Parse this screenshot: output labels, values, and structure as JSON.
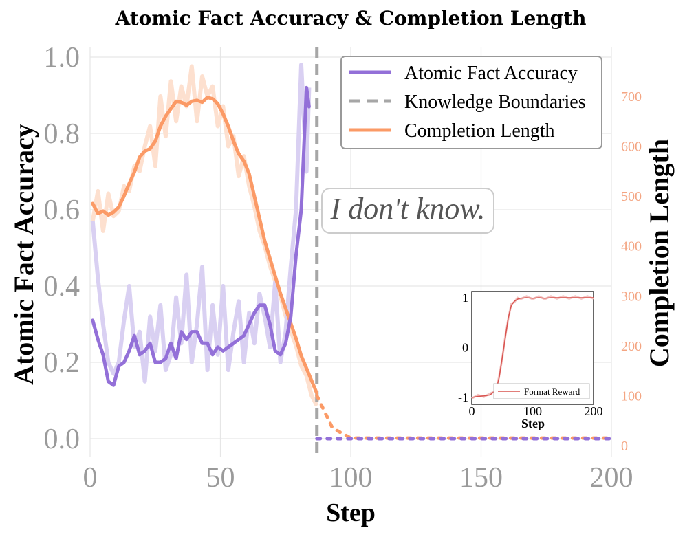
{
  "chart_data": {
    "type": "line",
    "title": "Atomic Fact Accuracy & Completion Length",
    "xlabel": "Step",
    "ylabel_left": "Atomic Fact Accuracy",
    "ylabel_right": "Completion Length",
    "xlim": [
      0,
      200
    ],
    "ylim_left": [
      0,
      1.0
    ],
    "ylim_right": [
      0,
      800
    ],
    "x_ticks": [
      "0",
      "50",
      "100",
      "150",
      "200"
    ],
    "y_left_ticks": [
      "0.0",
      "0.2",
      "0.4",
      "0.6",
      "0.8",
      "1.0"
    ],
    "y_right_ticks": [
      "0",
      "100",
      "200",
      "300",
      "400",
      "500",
      "600",
      "700"
    ],
    "grid": true,
    "legend_position": "top-right",
    "legend": [
      "Atomic Fact Accuracy",
      "Knowledge Boundaries",
      "Completion Length"
    ],
    "colors": {
      "accuracy": "#9370d8",
      "accuracy_raw": "#d9d0f2",
      "length": "#fb9a66",
      "length_raw": "#fde0cf",
      "boundary": "#a6a6a6",
      "inset": "#d9534f",
      "inset_raw": "#f2c6c4",
      "grid": "#e6e6e6",
      "right_axis": "#f4a582"
    },
    "knowledge_boundary_step": 87,
    "annotation": "I don't know.",
    "series": [
      {
        "name": "Atomic Fact Accuracy",
        "axis": "left",
        "x": [
          1,
          3,
          5,
          7,
          9,
          11,
          13,
          15,
          17,
          19,
          21,
          23,
          25,
          27,
          29,
          31,
          33,
          35,
          37,
          39,
          41,
          43,
          45,
          47,
          49,
          51,
          53,
          55,
          57,
          59,
          61,
          63,
          65,
          67,
          69,
          71,
          73,
          75,
          77,
          79,
          81,
          83,
          84
        ],
        "y": [
          0.31,
          0.26,
          0.22,
          0.15,
          0.14,
          0.19,
          0.2,
          0.23,
          0.27,
          0.22,
          0.23,
          0.25,
          0.2,
          0.2,
          0.21,
          0.25,
          0.21,
          0.28,
          0.26,
          0.28,
          0.28,
          0.25,
          0.25,
          0.22,
          0.24,
          0.23,
          0.24,
          0.25,
          0.26,
          0.27,
          0.3,
          0.33,
          0.35,
          0.35,
          0.3,
          0.23,
          0.22,
          0.25,
          0.32,
          0.48,
          0.6,
          0.92,
          0.87
        ],
        "raw": [
          0.57,
          0.42,
          0.3,
          0.2,
          0.17,
          0.2,
          0.31,
          0.4,
          0.24,
          0.28,
          0.15,
          0.32,
          0.23,
          0.35,
          0.18,
          0.22,
          0.37,
          0.25,
          0.43,
          0.2,
          0.3,
          0.45,
          0.18,
          0.35,
          0.22,
          0.4,
          0.18,
          0.28,
          0.36,
          0.2,
          0.33,
          0.25,
          0.38,
          0.32,
          0.24,
          0.41,
          0.2,
          0.28,
          0.45,
          0.6,
          0.98,
          0.7,
          0.92
        ]
      },
      {
        "name": "Completion Length",
        "axis": "right",
        "x": [
          1,
          3,
          5,
          7,
          9,
          11,
          13,
          15,
          17,
          19,
          21,
          23,
          25,
          27,
          29,
          31,
          33,
          35,
          37,
          39,
          41,
          43,
          45,
          47,
          49,
          51,
          53,
          55,
          57,
          59,
          61,
          63,
          65,
          67,
          69,
          71,
          73,
          75,
          77,
          79,
          81,
          83,
          85,
          87
        ],
        "y": [
          485,
          465,
          470,
          462,
          468,
          478,
          500,
          525,
          548,
          578,
          590,
          595,
          610,
          640,
          660,
          675,
          690,
          688,
          682,
          690,
          692,
          688,
          698,
          695,
          685,
          665,
          640,
          610,
          585,
          570,
          545,
          500,
          455,
          410,
          375,
          340,
          305,
          275,
          245,
          215,
          180,
          155,
          130,
          105
        ],
        "raw": [
          450,
          510,
          430,
          505,
          460,
          470,
          520,
          510,
          560,
          550,
          600,
          640,
          560,
          700,
          620,
          730,
          650,
          720,
          680,
          760,
          650,
          740,
          700,
          720,
          640,
          680,
          600,
          620,
          540,
          580,
          520,
          480,
          430,
          400,
          360,
          330,
          300,
          260,
          230,
          200,
          160,
          140,
          100,
          80
        ]
      },
      {
        "name": "Format Reward",
        "inset": true,
        "x": [
          0,
          10,
          20,
          30,
          40,
          45,
          50,
          55,
          60,
          65,
          70,
          75,
          80,
          90,
          100,
          110,
          120,
          130,
          140,
          150,
          160,
          170,
          180,
          190,
          200
        ],
        "y": [
          -1,
          -0.98,
          -0.97,
          -0.95,
          -0.85,
          -0.6,
          -0.2,
          0.2,
          0.6,
          0.85,
          0.93,
          0.97,
          0.99,
          1,
          0.99,
          1,
          0.99,
          1,
          1,
          1,
          1,
          1,
          1,
          1,
          1
        ]
      }
    ],
    "inset": {
      "xlabel": "Step",
      "xlim": [
        0,
        200
      ],
      "ylim": [
        -1.05,
        1.1
      ],
      "x_ticks": [
        "0",
        "100",
        "200"
      ],
      "y_ticks": [
        "-1",
        "0",
        "1"
      ],
      "legend": "Format Reward"
    }
  }
}
